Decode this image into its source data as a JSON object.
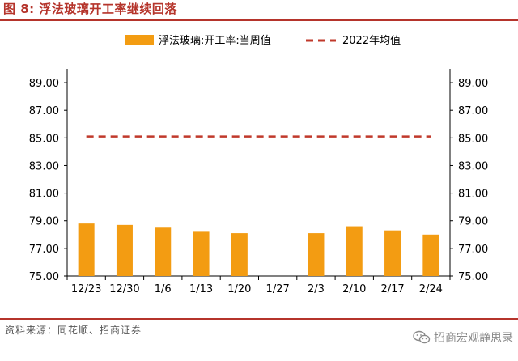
{
  "figure_title": "图 8:  浮法玻璃开工率继续回落",
  "source_note": "资料来源：同花顺、招商证券",
  "watermark_text": "招商宏观静思录",
  "watermark_icon": "wechat-icon",
  "colors": {
    "bar": "#f39c12",
    "reference_line": "#c0392b",
    "title": "#b5342b"
  },
  "chart_data": {
    "type": "bar",
    "categories": [
      "12/23",
      "12/30",
      "1/6",
      "1/13",
      "1/20",
      "1/27",
      "2/3",
      "2/10",
      "2/17",
      "2/24"
    ],
    "series": [
      {
        "name": "浮法玻璃:开工率:当周值",
        "type": "bar",
        "values": [
          78.8,
          78.7,
          78.5,
          78.2,
          78.1,
          null,
          78.1,
          78.6,
          78.3,
          78.0
        ]
      },
      {
        "name": "2022年均值",
        "type": "line",
        "style": "dashed",
        "values": [
          85.1,
          85.1,
          85.1,
          85.1,
          85.1,
          85.1,
          85.1,
          85.1,
          85.1,
          85.1
        ]
      }
    ],
    "ylim": [
      75,
      90
    ],
    "yticks": [
      "75.00",
      "77.00",
      "79.00",
      "81.00",
      "83.00",
      "85.00",
      "87.00",
      "89.00"
    ],
    "ytick_values": [
      75,
      77,
      79,
      81,
      83,
      85,
      87,
      89
    ],
    "secondary_yticks": [
      "75.00",
      "77.00",
      "79.00",
      "81.00",
      "83.00",
      "85.00",
      "87.00",
      "89.00"
    ],
    "legend_position": "top",
    "grid": false
  }
}
